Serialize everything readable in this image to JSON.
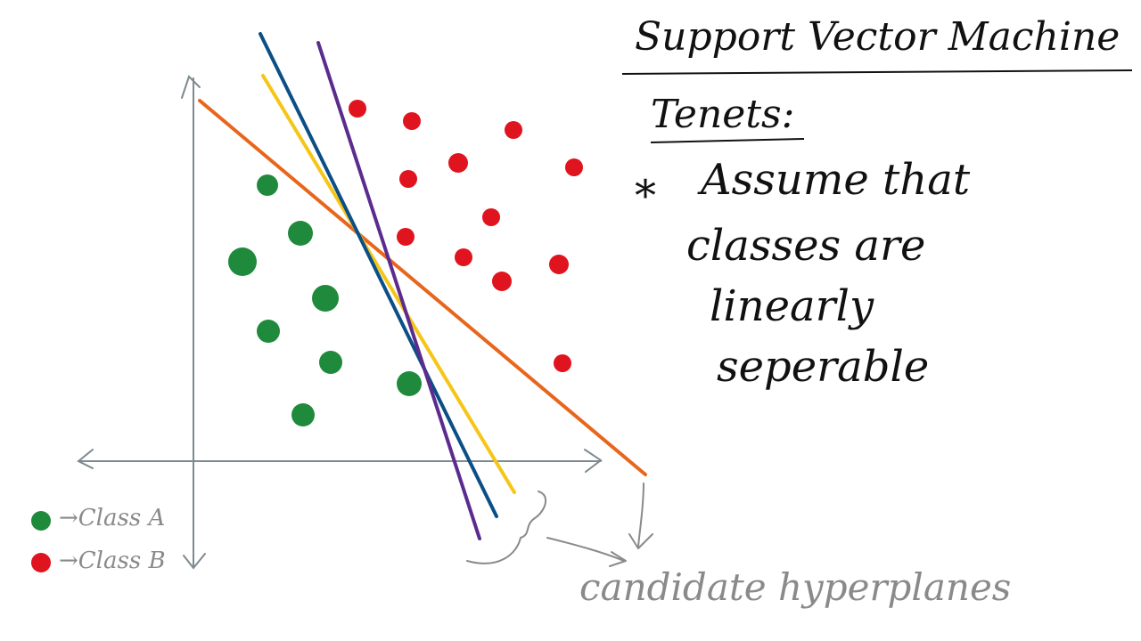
{
  "title": "Support Vector Machine",
  "subtitle": "Tenets:",
  "bullet_symbol": "*",
  "tenet_lines": [
    "Assume that",
    "classes are",
    "linearly",
    "seperable"
  ],
  "legend": [
    {
      "label": "→Class A",
      "color": "#1f8a3b"
    },
    {
      "label": "→Class B",
      "color": "#e0141e"
    }
  ],
  "annotation": "candidate hyperplanes",
  "colors": {
    "class_a": "#1f8a3b",
    "class_b": "#e0141e",
    "axis": "#7d8a8f",
    "hyperplanes": [
      "#e8661c",
      "#f5c518",
      "#0b4f86",
      "#5b2c8e"
    ]
  }
}
